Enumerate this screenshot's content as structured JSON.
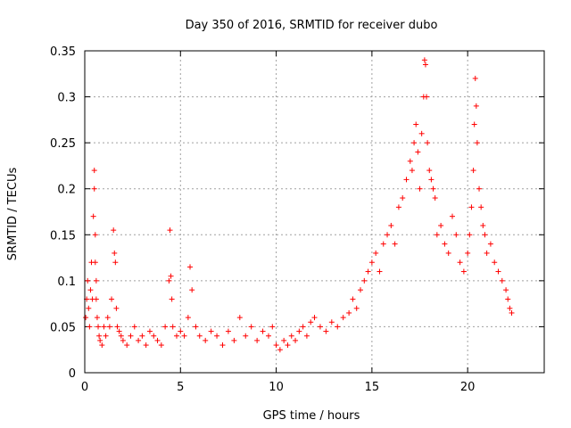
{
  "chart_data": {
    "type": "scatter",
    "title": "Day 350 of 2016, SRMTID for receiver dubo",
    "xlabel": "GPS time / hours",
    "ylabel": "SRMTID / TECUs",
    "xlim": [
      0,
      24
    ],
    "ylim": [
      0,
      0.35
    ],
    "xticks": [
      0,
      5,
      10,
      15,
      20
    ],
    "xtick_labels": [
      "0",
      "5",
      "10",
      "15",
      "20"
    ],
    "yticks": [
      0,
      0.05,
      0.1,
      0.15,
      0.2,
      0.25,
      0.3,
      0.35
    ],
    "ytick_labels": [
      "0",
      "0.05",
      "0.1",
      "0.15",
      "0.2",
      "0.25",
      "0.3",
      "0.35"
    ],
    "grid": true,
    "marker": "+",
    "series": [
      {
        "name": "SRMTID",
        "color": "#ff0000",
        "x": [
          0.05,
          0.1,
          0.15,
          0.2,
          0.25,
          0.3,
          0.35,
          0.4,
          0.45,
          0.5,
          0.5,
          0.55,
          0.55,
          0.6,
          0.6,
          0.65,
          0.7,
          0.75,
          0.8,
          0.9,
          1.0,
          1.1,
          1.2,
          1.3,
          1.4,
          1.5,
          1.55,
          1.6,
          1.65,
          1.7,
          1.8,
          1.9,
          2.0,
          2.2,
          2.4,
          2.6,
          2.8,
          3.0,
          3.2,
          3.4,
          3.6,
          3.8,
          4.0,
          4.2,
          4.4,
          4.45,
          4.5,
          4.55,
          4.6,
          4.8,
          5.0,
          5.2,
          5.4,
          5.5,
          5.6,
          5.8,
          6.0,
          6.3,
          6.6,
          6.9,
          7.2,
          7.5,
          7.8,
          8.1,
          8.4,
          8.7,
          9.0,
          9.3,
          9.6,
          9.8,
          10.0,
          10.2,
          10.4,
          10.6,
          10.8,
          11.0,
          11.2,
          11.4,
          11.6,
          11.8,
          12.0,
          12.3,
          12.6,
          12.9,
          13.2,
          13.5,
          13.8,
          14.0,
          14.2,
          14.4,
          14.6,
          14.8,
          15.0,
          15.2,
          15.4,
          15.6,
          15.8,
          16.0,
          16.2,
          16.4,
          16.6,
          16.8,
          17.0,
          17.1,
          17.2,
          17.3,
          17.4,
          17.5,
          17.6,
          17.7,
          17.75,
          17.8,
          17.85,
          17.9,
          18.0,
          18.1,
          18.2,
          18.3,
          18.4,
          18.6,
          18.8,
          19.0,
          19.2,
          19.4,
          19.6,
          19.8,
          20.0,
          20.1,
          20.2,
          20.3,
          20.35,
          20.4,
          20.45,
          20.5,
          20.6,
          20.7,
          20.8,
          20.9,
          21.0,
          21.2,
          21.4,
          21.6,
          21.8,
          22.0,
          22.1,
          22.2,
          22.3
        ],
        "y": [
          0.06,
          0.08,
          0.1,
          0.07,
          0.05,
          0.09,
          0.12,
          0.08,
          0.17,
          0.22,
          0.2,
          0.15,
          0.12,
          0.1,
          0.08,
          0.06,
          0.05,
          0.04,
          0.035,
          0.03,
          0.05,
          0.04,
          0.06,
          0.05,
          0.08,
          0.155,
          0.13,
          0.12,
          0.07,
          0.05,
          0.045,
          0.04,
          0.035,
          0.03,
          0.04,
          0.05,
          0.035,
          0.04,
          0.03,
          0.045,
          0.04,
          0.035,
          0.03,
          0.05,
          0.1,
          0.155,
          0.105,
          0.08,
          0.05,
          0.04,
          0.045,
          0.04,
          0.06,
          0.115,
          0.09,
          0.05,
          0.04,
          0.035,
          0.045,
          0.04,
          0.03,
          0.045,
          0.035,
          0.06,
          0.04,
          0.05,
          0.035,
          0.045,
          0.04,
          0.05,
          0.03,
          0.025,
          0.035,
          0.03,
          0.04,
          0.035,
          0.045,
          0.05,
          0.04,
          0.055,
          0.06,
          0.05,
          0.045,
          0.055,
          0.05,
          0.06,
          0.065,
          0.08,
          0.07,
          0.09,
          0.1,
          0.11,
          0.12,
          0.13,
          0.11,
          0.14,
          0.15,
          0.16,
          0.14,
          0.18,
          0.19,
          0.21,
          0.23,
          0.22,
          0.25,
          0.27,
          0.24,
          0.2,
          0.26,
          0.3,
          0.34,
          0.335,
          0.3,
          0.25,
          0.22,
          0.21,
          0.2,
          0.19,
          0.15,
          0.16,
          0.14,
          0.13,
          0.17,
          0.15,
          0.12,
          0.11,
          0.13,
          0.15,
          0.18,
          0.22,
          0.27,
          0.32,
          0.29,
          0.25,
          0.2,
          0.18,
          0.16,
          0.15,
          0.13,
          0.14,
          0.12,
          0.11,
          0.1,
          0.09,
          0.08,
          0.07,
          0.065
        ]
      }
    ]
  }
}
